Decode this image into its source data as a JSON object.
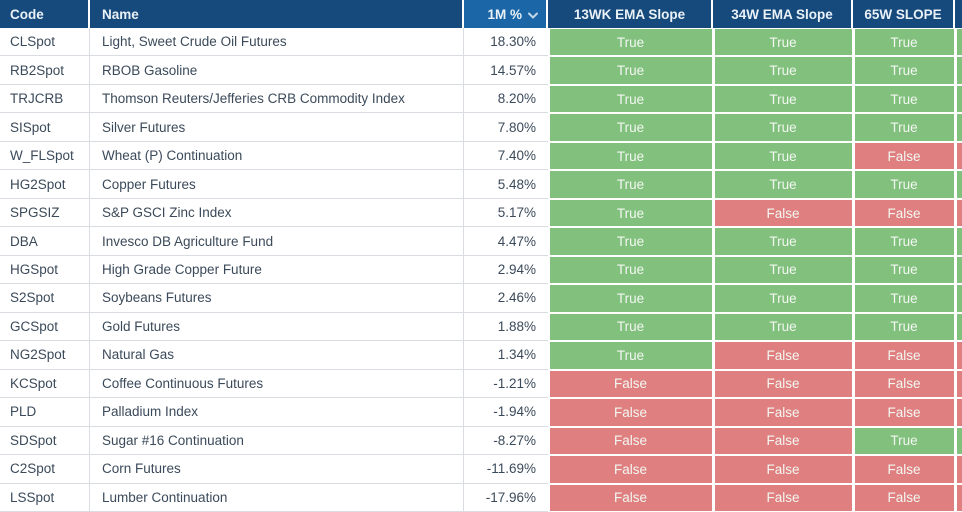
{
  "colors": {
    "header_bg": "#164A7C",
    "sorted_header_bg": "#1B66A7",
    "header_text": "#EAF1F7",
    "body_text": "#3B4A5A",
    "grid_line": "#D9DDE1",
    "true_bg": "#82C07D",
    "false_bg": "#E07F80",
    "chip_text": "#F2F7F1"
  },
  "table": {
    "columns": {
      "code": "Code",
      "name": "Name",
      "pct": "1M %",
      "s13": "13WK EMA Slope",
      "s34": "34W EMA Slope",
      "s65": "65W SLOPE"
    },
    "sort": {
      "column": "1M %",
      "direction": "desc",
      "icon": "chevron-down"
    },
    "rows": [
      {
        "code": "CLSpot",
        "name": "Light, Sweet Crude Oil Futures",
        "oneMonth": "18.30%",
        "s13": "True",
        "s34": "True",
        "s65": "True",
        "overflow": "True"
      },
      {
        "code": "RB2Spot",
        "name": "RBOB Gasoline",
        "oneMonth": "14.57%",
        "s13": "True",
        "s34": "True",
        "s65": "True",
        "overflow": "True"
      },
      {
        "code": "TRJCRB",
        "name": "Thomson Reuters/Jefferies CRB Commodity Index",
        "oneMonth": "8.20%",
        "s13": "True",
        "s34": "True",
        "s65": "True",
        "overflow": "True"
      },
      {
        "code": "SISpot",
        "name": "Silver Futures",
        "oneMonth": "7.80%",
        "s13": "True",
        "s34": "True",
        "s65": "True",
        "overflow": "True"
      },
      {
        "code": "W_FLSpot",
        "name": "Wheat (P) Continuation",
        "oneMonth": "7.40%",
        "s13": "True",
        "s34": "True",
        "s65": "False",
        "overflow": "False"
      },
      {
        "code": "HG2Spot",
        "name": "Copper Futures",
        "oneMonth": "5.48%",
        "s13": "True",
        "s34": "True",
        "s65": "True",
        "overflow": "True"
      },
      {
        "code": "SPGSIZ",
        "name": "S&P GSCI Zinc Index",
        "oneMonth": "5.17%",
        "s13": "True",
        "s34": "False",
        "s65": "False",
        "overflow": "False"
      },
      {
        "code": "DBA",
        "name": "Invesco DB Agriculture Fund",
        "oneMonth": "4.47%",
        "s13": "True",
        "s34": "True",
        "s65": "True",
        "overflow": "True"
      },
      {
        "code": "HGSpot",
        "name": "High Grade Copper Future",
        "oneMonth": "2.94%",
        "s13": "True",
        "s34": "True",
        "s65": "True",
        "overflow": "True"
      },
      {
        "code": "S2Spot",
        "name": "Soybeans Futures",
        "oneMonth": "2.46%",
        "s13": "True",
        "s34": "True",
        "s65": "True",
        "overflow": "True"
      },
      {
        "code": "GCSpot",
        "name": "Gold Futures",
        "oneMonth": "1.88%",
        "s13": "True",
        "s34": "True",
        "s65": "True",
        "overflow": "True"
      },
      {
        "code": "NG2Spot",
        "name": "Natural Gas",
        "oneMonth": "1.34%",
        "s13": "True",
        "s34": "False",
        "s65": "False",
        "overflow": "False"
      },
      {
        "code": "KCSpot",
        "name": "Coffee Continuous Futures",
        "oneMonth": "-1.21%",
        "s13": "False",
        "s34": "False",
        "s65": "False",
        "overflow": "False"
      },
      {
        "code": "PLD",
        "name": "Palladium Index",
        "oneMonth": "-1.94%",
        "s13": "False",
        "s34": "False",
        "s65": "False",
        "overflow": "False"
      },
      {
        "code": "SDSpot",
        "name": "Sugar #16 Continuation",
        "oneMonth": "-8.27%",
        "s13": "False",
        "s34": "False",
        "s65": "True",
        "overflow": "True"
      },
      {
        "code": "C2Spot",
        "name": "Corn Futures",
        "oneMonth": "-11.69%",
        "s13": "False",
        "s34": "False",
        "s65": "False",
        "overflow": "False"
      },
      {
        "code": "LSSpot",
        "name": "Lumber Continuation",
        "oneMonth": "-17.96%",
        "s13": "False",
        "s34": "False",
        "s65": "False",
        "overflow": "False"
      }
    ]
  }
}
